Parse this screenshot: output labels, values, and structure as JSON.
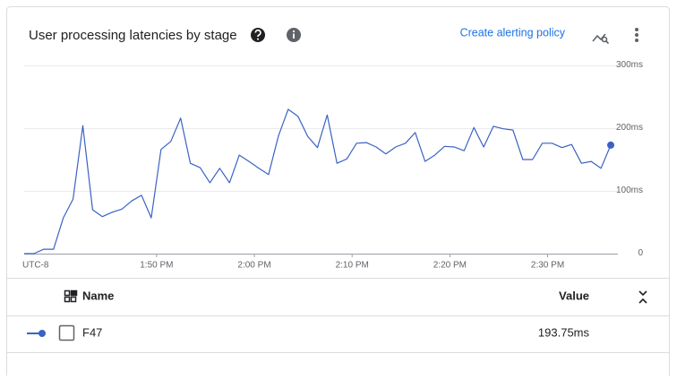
{
  "title": "User processing latencies by stage",
  "actions": {
    "create_alert": "Create alerting policy"
  },
  "chart_data": {
    "type": "line",
    "timezone_label": "UTC-8",
    "x": [
      "13:36:30",
      "13:37:30",
      "13:38:30",
      "13:39:30",
      "13:40:30",
      "13:41:30",
      "13:42:30",
      "13:43:30",
      "13:44:30",
      "13:45:30",
      "13:46:30",
      "13:47:30",
      "13:48:30",
      "13:49:30",
      "13:50:30",
      "13:51:30",
      "13:52:30",
      "13:53:30",
      "13:54:30",
      "13:55:30",
      "13:56:30",
      "13:57:30",
      "13:58:30",
      "13:59:30",
      "14:00:30",
      "14:01:30",
      "14:02:30",
      "14:03:30",
      "14:04:30",
      "14:05:30",
      "14:06:30",
      "14:07:30",
      "14:08:30",
      "14:09:30",
      "14:10:30",
      "14:11:30",
      "14:12:30",
      "14:13:30",
      "14:14:30",
      "14:15:30",
      "14:16:30",
      "14:17:30",
      "14:18:30",
      "14:19:30",
      "14:20:30",
      "14:21:30",
      "14:22:30",
      "14:23:30",
      "14:24:30",
      "14:25:30",
      "14:26:30",
      "14:27:30",
      "14:28:30",
      "14:29:30",
      "14:30:30",
      "14:31:30",
      "14:32:30",
      "14:33:30",
      "14:34:30",
      "14:35:30",
      "14:36:30"
    ],
    "series": [
      {
        "name": "F47",
        "color": "#3a62c4",
        "values": [
          0,
          0,
          7,
          7,
          57,
          87,
          204,
          70,
          59,
          66,
          71,
          84,
          93,
          57,
          166,
          179,
          216,
          144,
          137,
          113,
          136,
          113,
          157,
          147,
          136,
          126,
          187,
          230,
          219,
          187,
          169,
          221,
          144,
          151,
          176,
          177,
          170,
          159,
          170,
          176,
          193,
          147,
          157,
          171,
          170,
          164,
          201,
          170,
          203,
          199,
          197,
          150,
          150,
          176,
          176,
          169,
          174,
          144,
          147,
          136,
          173
        ]
      }
    ],
    "xlim": [
      "13:36:30",
      "14:36:30"
    ],
    "xticks": [
      {
        "value": "13:50",
        "label": "1:50 PM"
      },
      {
        "value": "14:00",
        "label": "2:00 PM"
      },
      {
        "value": "14:10",
        "label": "2:10 PM"
      },
      {
        "value": "14:20",
        "label": "2:20 PM"
      },
      {
        "value": "14:30",
        "label": "2:30 PM"
      }
    ],
    "ylim": [
      0,
      300
    ],
    "yticks": [
      0,
      {
        "value": 100,
        "label": "100ms"
      },
      {
        "value": 200,
        "label": "200ms"
      },
      {
        "value": 300,
        "label": "300ms"
      }
    ],
    "grid": true
  },
  "legend_table": {
    "headers": [
      "Name",
      "Value"
    ],
    "rows": [
      [
        "F47",
        "193.75ms"
      ]
    ]
  }
}
